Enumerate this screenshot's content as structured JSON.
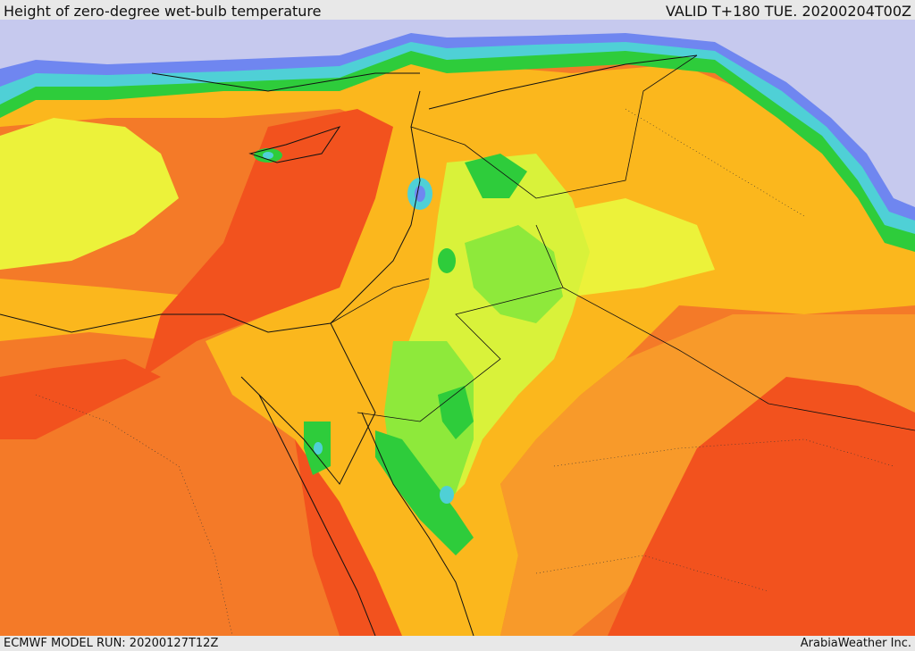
{
  "header": {
    "title": "Height of zero-degree wet-bulb temperature",
    "valid_time": "VALID T+180 TUE. 20200204T00Z"
  },
  "footer": {
    "model_run": "ECMWF MODEL RUN: 20200127T12Z",
    "credit": "ArabiaWeather Inc."
  },
  "map": {
    "region": "Eastern Mediterranean and Middle East",
    "field": "zero-degree wet-bulb height",
    "colors": {
      "very_low": "#c6c9ee",
      "low_blue": "#6f86f0",
      "cyan": "#4fd0d6",
      "teal": "#3bbf99",
      "green": "#2ecc3b",
      "light_green": "#8ee93b",
      "yellow_green": "#d9f23a",
      "yellow": "#ecf23a",
      "light_orange": "#fbb71d",
      "orange": "#f89a2a",
      "dark_orange": "#f47a28",
      "red_orange": "#f2521e"
    }
  }
}
